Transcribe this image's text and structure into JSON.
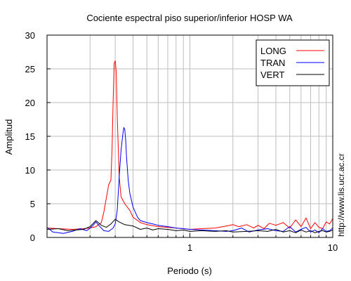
{
  "chart_data": {
    "type": "line",
    "title": "Cociente espectral piso superior/inferior  HOSP WA",
    "xlabel": "Periodo (s)",
    "ylabel": "Amplitud",
    "x_scale": "log",
    "xlim": [
      0.1,
      10
    ],
    "ylim": [
      0,
      30
    ],
    "x_ticks": [
      1,
      10
    ],
    "x_tick_labels": [
      "1",
      "10"
    ],
    "y_ticks": [
      0,
      5,
      10,
      15,
      20,
      25,
      30
    ],
    "y_tick_labels": [
      "0",
      "5",
      "10",
      "15",
      "20",
      "25",
      "30"
    ],
    "grid": true,
    "legend_position": "top-right",
    "watermark": "http://www.lis.ucr.ac.cr",
    "series": [
      {
        "name": "LONG",
        "color": "#ff0000",
        "x": [
          0.1,
          0.12,
          0.15,
          0.18,
          0.2,
          0.22,
          0.24,
          0.25,
          0.26,
          0.27,
          0.28,
          0.285,
          0.29,
          0.295,
          0.3,
          0.305,
          0.31,
          0.32,
          0.33,
          0.35,
          0.38,
          0.4,
          0.45,
          0.5,
          0.6,
          0.7,
          0.8,
          0.9,
          1.0,
          1.2,
          1.5,
          1.8,
          2.0,
          2.2,
          2.5,
          2.8,
          3.0,
          3.3,
          3.6,
          4.0,
          4.5,
          5.0,
          5.5,
          6.0,
          6.5,
          7.0,
          7.5,
          8.0,
          8.5,
          9.0,
          9.5,
          10
        ],
        "y": [
          1.4,
          1.3,
          1.2,
          1.3,
          1.4,
          1.6,
          2.2,
          3.8,
          5.8,
          7.8,
          8.5,
          13.0,
          20.0,
          25.8,
          26.2,
          24.5,
          18.0,
          9.0,
          6.0,
          5.0,
          4.0,
          3.0,
          2.2,
          1.9,
          1.6,
          1.5,
          1.4,
          1.3,
          1.2,
          1.3,
          1.4,
          1.7,
          1.9,
          1.6,
          1.9,
          1.4,
          1.8,
          1.3,
          2.1,
          1.8,
          2.2,
          1.4,
          2.6,
          1.6,
          2.9,
          1.3,
          2.2,
          1.5,
          1.3,
          2.3,
          2.0,
          2.8
        ]
      },
      {
        "name": "TRAN",
        "color": "#0000ff",
        "x": [
          0.1,
          0.11,
          0.12,
          0.13,
          0.15,
          0.17,
          0.19,
          0.2,
          0.21,
          0.22,
          0.23,
          0.25,
          0.27,
          0.29,
          0.3,
          0.31,
          0.32,
          0.33,
          0.34,
          0.345,
          0.35,
          0.355,
          0.36,
          0.37,
          0.38,
          0.4,
          0.43,
          0.45,
          0.5,
          0.55,
          0.6,
          0.7,
          0.8,
          0.9,
          1.0,
          1.2,
          1.5,
          1.8,
          2.0,
          2.3,
          2.6,
          3.0,
          3.5,
          4.0,
          4.5,
          5.0,
          5.5,
          6.0,
          6.5,
          7.0,
          7.5,
          8.0,
          8.5,
          9.0,
          9.5,
          10
        ],
        "y": [
          1.5,
          0.8,
          0.7,
          0.6,
          0.9,
          1.3,
          1.0,
          1.4,
          1.8,
          2.3,
          1.8,
          1.0,
          0.9,
          1.4,
          2.0,
          4.0,
          9.0,
          13.0,
          15.5,
          16.3,
          16.0,
          14.5,
          12.0,
          8.5,
          6.5,
          4.5,
          3.0,
          2.5,
          2.2,
          2.0,
          1.8,
          1.6,
          1.4,
          1.3,
          1.2,
          1.1,
          1.0,
          0.9,
          1.0,
          1.4,
          0.8,
          1.1,
          1.3,
          1.0,
          0.9,
          1.6,
          0.8,
          1.2,
          1.5,
          0.8,
          1.1,
          0.7,
          1.3,
          0.9,
          1.0,
          1.4
        ]
      },
      {
        "name": "VERT",
        "color": "#000000",
        "x": [
          0.1,
          0.12,
          0.14,
          0.16,
          0.18,
          0.2,
          0.22,
          0.24,
          0.26,
          0.28,
          0.3,
          0.32,
          0.35,
          0.4,
          0.45,
          0.5,
          0.55,
          0.6,
          0.7,
          0.8,
          0.9,
          1.0,
          1.2,
          1.5,
          1.8,
          2.0,
          2.5,
          3.0,
          3.5,
          4.0,
          4.5,
          5.0,
          5.5,
          6.0,
          6.5,
          7.0,
          7.5,
          8.0,
          8.5,
          9.0,
          9.5,
          10
        ],
        "y": [
          1.2,
          1.3,
          1.0,
          1.1,
          1.2,
          1.6,
          2.5,
          1.8,
          1.5,
          2.0,
          2.7,
          2.3,
          1.9,
          1.7,
          1.2,
          1.4,
          1.1,
          1.3,
          1.2,
          1.0,
          1.1,
          0.9,
          1.0,
          0.9,
          1.0,
          0.8,
          0.9,
          1.0,
          0.9,
          1.2,
          0.8,
          1.0,
          0.7,
          1.1,
          0.8,
          1.0,
          0.7,
          0.9,
          1.0,
          0.8,
          0.9,
          1.1
        ]
      }
    ]
  }
}
